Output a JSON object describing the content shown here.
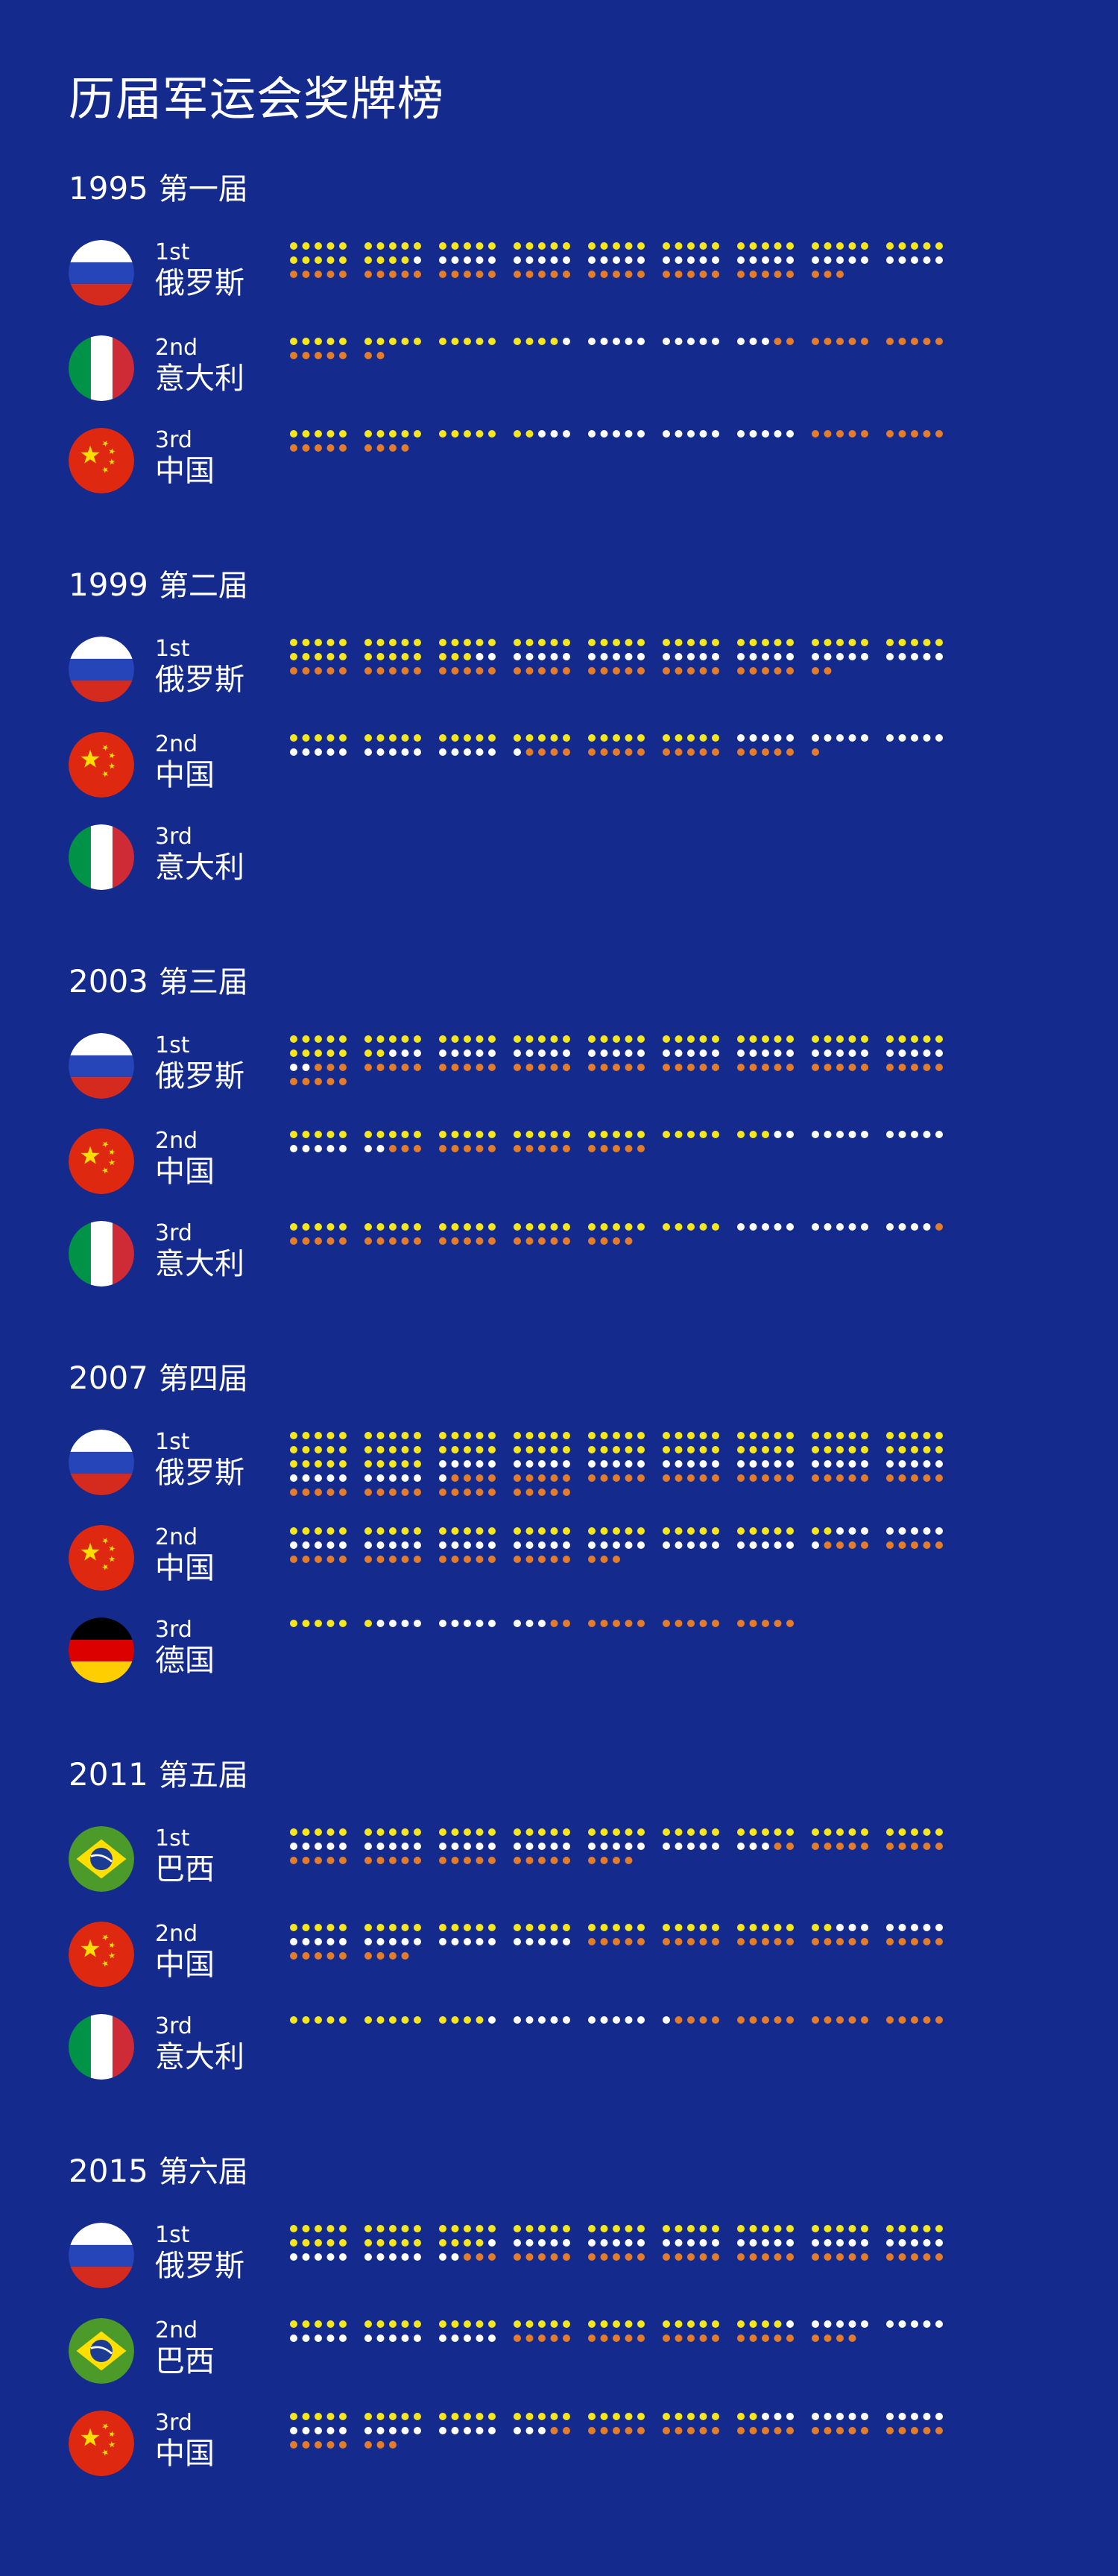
{
  "title": "历届军运会奖牌榜",
  "colors": {
    "background": "#142a8c",
    "gold": "#f5e61e",
    "silver": "#ffffff",
    "bronze": "#e37d2b"
  },
  "chart_data": {
    "type": "dot-matrix",
    "medal_types": [
      "gold",
      "silver",
      "bronze"
    ],
    "editions": [
      {
        "year": "1995",
        "name": "第一届",
        "entries": [
          {
            "rank": "1st",
            "country": "俄罗斯",
            "flag": "russia",
            "gold": 54,
            "silver": 36,
            "bronze": 38
          },
          {
            "rank": "2nd",
            "country": "意大利",
            "flag": "italy",
            "gold": 19,
            "silver": 14,
            "bronze": 19
          },
          {
            "rank": "3rd",
            "country": "中国",
            "flag": "china",
            "gold": 17,
            "silver": 18,
            "bronze": 19
          }
        ]
      },
      {
        "year": "1999",
        "name": "第二届",
        "entries": [
          {
            "rank": "1st",
            "country": "俄罗斯",
            "flag": "russia",
            "gold": 58,
            "silver": 32,
            "bronze": 37
          },
          {
            "rank": "2nd",
            "country": "中国",
            "flag": "china",
            "gold": 30,
            "silver": 31,
            "bronze": 20
          },
          {
            "rank": "3rd",
            "country": "意大利",
            "flag": "italy",
            "gold": 0,
            "silver": 0,
            "bronze": 0
          }
        ]
      },
      {
        "year": "2003",
        "name": "第三届",
        "entries": [
          {
            "rank": "1st",
            "country": "俄罗斯",
            "flag": "russia",
            "gold": 52,
            "silver": 40,
            "bronze": 48
          },
          {
            "rank": "2nd",
            "country": "中国",
            "flag": "china",
            "gold": 33,
            "silver": 19,
            "bronze": 18
          },
          {
            "rank": "3rd",
            "country": "意大利",
            "flag": "italy",
            "gold": 30,
            "silver": 14,
            "bronze": 25
          }
        ]
      },
      {
        "year": "2007",
        "name": "第四届",
        "entries": [
          {
            "rank": "1st",
            "country": "俄罗斯",
            "flag": "russia",
            "gold": 100,
            "silver": 46,
            "bronze": 54
          },
          {
            "rank": "2nd",
            "country": "中国",
            "flag": "china",
            "gold": 37,
            "silver": 44,
            "bronze": 32
          },
          {
            "rank": "3rd",
            "country": "德国",
            "flag": "germany",
            "gold": 6,
            "silver": 12,
            "bronze": 17
          }
        ]
      },
      {
        "year": "2011",
        "name": "第五届",
        "entries": [
          {
            "rank": "1st",
            "country": "巴西",
            "flag": "brazil",
            "gold": 45,
            "silver": 33,
            "bronze": 36
          },
          {
            "rank": "2nd",
            "country": "中国",
            "flag": "china",
            "gold": 37,
            "silver": 28,
            "bronze": 34
          },
          {
            "rank": "3rd",
            "country": "意大利",
            "flag": "italy",
            "gold": 14,
            "silver": 12,
            "bronze": 19
          }
        ]
      },
      {
        "year": "2015",
        "name": "第六届",
        "entries": [
          {
            "rank": "1st",
            "country": "俄罗斯",
            "flag": "russia",
            "gold": 59,
            "silver": 43,
            "bronze": 33
          },
          {
            "rank": "2nd",
            "country": "巴西",
            "flag": "brazil",
            "gold": 34,
            "silver": 26,
            "bronze": 24
          },
          {
            "rank": "3rd",
            "country": "中国",
            "flag": "china",
            "gold": 32,
            "silver": 31,
            "bronze": 35
          }
        ]
      }
    ]
  }
}
